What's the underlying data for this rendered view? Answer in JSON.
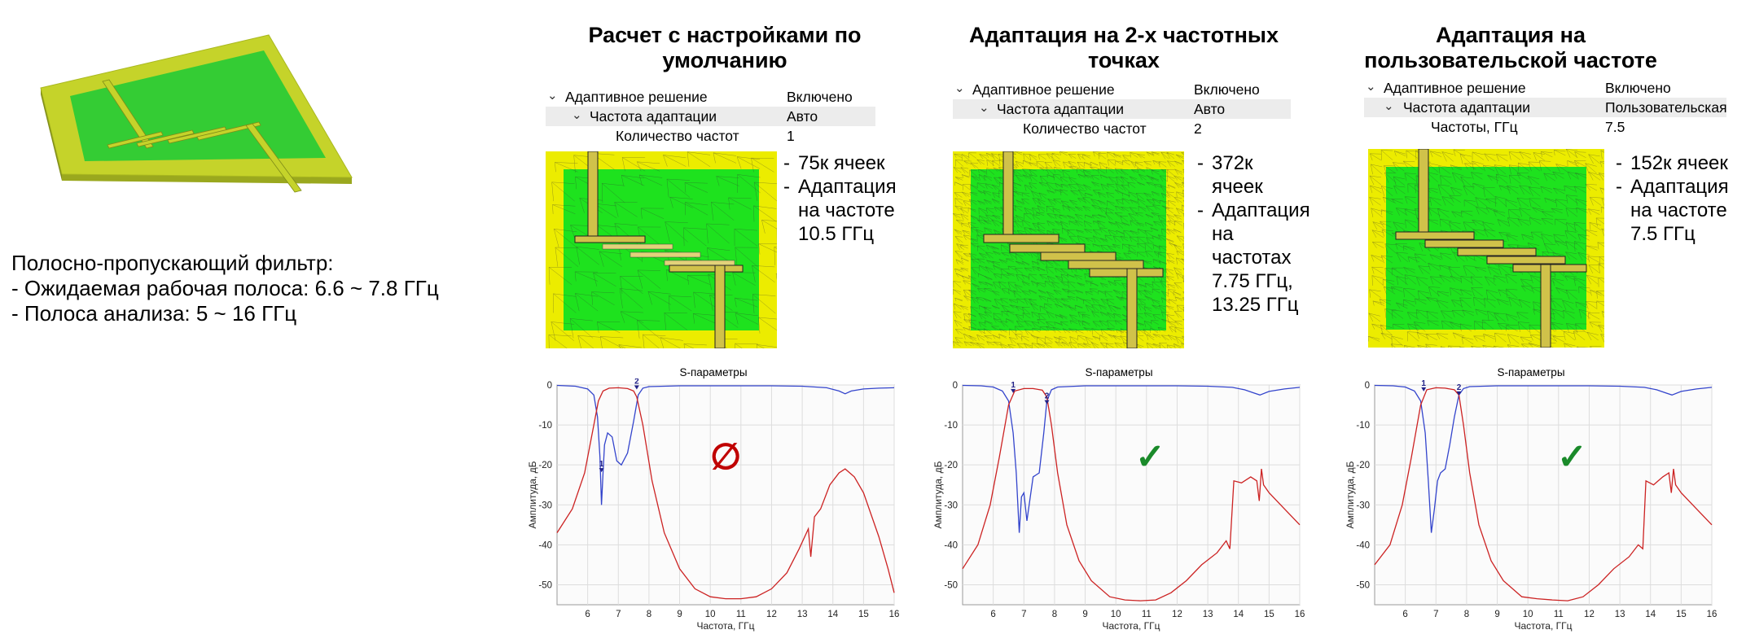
{
  "intro": {
    "heading": "Полосно-пропускающий фильтр:",
    "lines": [
      "Ожидаемая рабочая полоса: 6.6 ~ 7.8 ГГц",
      "Полоса анализа: 5 ~ 16 ГГц"
    ]
  },
  "columns": [
    {
      "title": "Расчет с настройками по умолчанию",
      "props": [
        {
          "label": "Адаптивное решение",
          "value": "Включено"
        },
        {
          "label": "Частота адаптации",
          "value": "Авто"
        },
        {
          "label": "Количество частот",
          "value": "1"
        }
      ],
      "bullets": [
        "75к ячеек",
        "Адаптация на частоте 10.5 ГГц"
      ],
      "status_icon": "prohibited-icon",
      "status_glyph": "∅",
      "status_color": "#c00000"
    },
    {
      "title": "Адаптация на 2-х частотных точках",
      "props": [
        {
          "label": "Адаптивное решение",
          "value": "Включено"
        },
        {
          "label": "Частота адаптации",
          "value": "Авто"
        },
        {
          "label": "Количество частот",
          "value": "2"
        }
      ],
      "bullets": [
        "372к ячеек",
        "Адаптация на частотах 7.75 ГГц, 13.25 ГГц"
      ],
      "status_icon": "checkmark-icon",
      "status_glyph": "✓",
      "status_color": "#1a8a2a"
    },
    {
      "title": "Адаптация на пользовательской частоте",
      "props": [
        {
          "label": "Адаптивное решение",
          "value": "Включено"
        },
        {
          "label": "Частота адаптации",
          "value": "Пользовательская"
        },
        {
          "label": "Частоты, ГГц",
          "value": "7.5"
        }
      ],
      "bullets": [
        "152к ячеек",
        "Адаптация на частоте 7.5 ГГц"
      ],
      "status_icon": "checkmark-icon",
      "status_glyph": "✓",
      "status_color": "#1a8a2a"
    }
  ],
  "chart_data": [
    {
      "type": "line",
      "title": "S-параметры",
      "xlabel": "Частота, ГГц",
      "ylabel": "Амплитуда, дБ",
      "xlim": [
        5,
        16
      ],
      "ylim": [
        -55,
        0
      ],
      "xticks": [
        6,
        7,
        8,
        9,
        10,
        11,
        12,
        13,
        14,
        15,
        16
      ],
      "yticks": [
        0,
        -10,
        -20,
        -30,
        -40,
        -50
      ],
      "markers": [
        {
          "label": "1",
          "x": 6.45,
          "y": -21
        },
        {
          "label": "2",
          "x": 7.6,
          "y": -0.3
        }
      ],
      "series": [
        {
          "color": "#3344cc",
          "x": [
            5,
            5.6,
            6.0,
            6.2,
            6.32,
            6.4,
            6.45,
            6.5,
            6.55,
            6.65,
            6.8,
            6.95,
            7.1,
            7.3,
            7.5,
            7.65,
            7.8,
            8.0,
            9,
            10,
            11,
            12,
            13,
            13.8,
            14.2,
            14.4,
            14.6,
            15,
            15.5,
            16
          ],
          "y": [
            -0.1,
            -0.3,
            -1,
            -2.5,
            -8,
            -18,
            -30,
            -22,
            -15,
            -12,
            -13,
            -19,
            -20,
            -17,
            -9,
            -2.5,
            -0.8,
            -0.4,
            -0.2,
            -0.2,
            -0.2,
            -0.2,
            -0.3,
            -0.7,
            -1.5,
            -2.2,
            -1.5,
            -1.0,
            -0.8,
            -0.7
          ]
        },
        {
          "color": "#cc2222",
          "x": [
            5,
            5.5,
            5.9,
            6.2,
            6.35,
            6.5,
            6.7,
            7.0,
            7.3,
            7.5,
            7.6,
            7.8,
            8.1,
            8.5,
            9,
            9.5,
            10,
            10.5,
            11,
            11.5,
            12,
            12.5,
            12.9,
            13.2,
            13.28,
            13.35,
            13.4,
            13.6,
            13.9,
            14.2,
            14.4,
            14.7,
            15,
            15.5,
            15.8,
            16
          ],
          "y": [
            -37,
            -31,
            -22,
            -10,
            -4,
            -1.5,
            -0.8,
            -0.7,
            -0.9,
            -1.5,
            -3,
            -10,
            -24,
            -37,
            -46,
            -51,
            -53,
            -53.5,
            -53.5,
            -53,
            -51,
            -47,
            -41,
            -36,
            -43,
            -37,
            -33,
            -31,
            -25,
            -22,
            -21,
            -23,
            -27,
            -38,
            -46,
            -52
          ]
        }
      ]
    },
    {
      "type": "line",
      "title": "S-параметры",
      "xlabel": "Частота, ГГц",
      "ylabel": "Амплитуда, дБ",
      "xlim": [
        5,
        16
      ],
      "ylim": [
        -55,
        0
      ],
      "xticks": [
        6,
        7,
        8,
        9,
        10,
        11,
        12,
        13,
        14,
        15,
        16
      ],
      "yticks": [
        0,
        -10,
        -20,
        -30,
        -40,
        -50
      ],
      "markers": [
        {
          "label": "1",
          "x": 6.65,
          "y": -1.2
        },
        {
          "label": "2",
          "x": 7.75,
          "y": -4
        }
      ],
      "series": [
        {
          "color": "#3344cc",
          "x": [
            5,
            5.6,
            6.0,
            6.3,
            6.5,
            6.65,
            6.75,
            6.85,
            6.92,
            7.0,
            7.1,
            7.3,
            7.5,
            7.65,
            7.75,
            7.9,
            8.1,
            9,
            10,
            11,
            12,
            13,
            13.8,
            14.2,
            14.5,
            14.7,
            15,
            15.5,
            16
          ],
          "y": [
            -0.1,
            -0.2,
            -0.5,
            -1.5,
            -4,
            -12,
            -22,
            -37,
            -28,
            -27,
            -34,
            -23,
            -22,
            -12,
            -4,
            -1.2,
            -0.5,
            -0.2,
            -0.2,
            -0.2,
            -0.2,
            -0.3,
            -0.6,
            -1.2,
            -2.0,
            -2.5,
            -1.6,
            -1.0,
            -0.6
          ]
        },
        {
          "color": "#cc2222",
          "x": [
            5,
            5.5,
            5.9,
            6.2,
            6.5,
            6.7,
            7.0,
            7.3,
            7.6,
            7.75,
            7.9,
            8.1,
            8.4,
            8.8,
            9.2,
            9.8,
            10.3,
            10.8,
            11.3,
            11.8,
            12.3,
            12.8,
            13.3,
            13.6,
            13.72,
            13.85,
            14.1,
            14.4,
            14.6,
            14.68,
            14.75,
            14.82,
            15,
            15.5,
            16
          ],
          "y": [
            -46,
            -40,
            -30,
            -18,
            -5,
            -1.5,
            -0.9,
            -0.9,
            -1.3,
            -3,
            -10,
            -22,
            -35,
            -44,
            -49,
            -53,
            -53.8,
            -54,
            -53.8,
            -52,
            -49,
            -45,
            -42,
            -39,
            -41,
            -24,
            -24.5,
            -23,
            -24,
            -29,
            -21,
            -25,
            -27,
            -31,
            -35
          ]
        }
      ]
    },
    {
      "type": "line",
      "title": "S-параметры",
      "xlabel": "Частота, ГГц",
      "ylabel": "Амплитуда, дБ",
      "xlim": [
        5,
        16
      ],
      "ylim": [
        -55,
        0
      ],
      "xticks": [
        6,
        7,
        8,
        9,
        10,
        11,
        12,
        13,
        14,
        15,
        16
      ],
      "yticks": [
        0,
        -10,
        -20,
        -30,
        -40,
        -50
      ],
      "markers": [
        {
          "label": "1",
          "x": 6.6,
          "y": -0.8
        },
        {
          "label": "2",
          "x": 7.75,
          "y": -1.8
        }
      ],
      "series": [
        {
          "color": "#3344cc",
          "x": [
            5,
            5.6,
            6.0,
            6.3,
            6.5,
            6.65,
            6.75,
            6.85,
            6.95,
            7.05,
            7.15,
            7.3,
            7.45,
            7.6,
            7.75,
            7.9,
            8.1,
            9,
            10,
            11,
            12,
            13,
            13.8,
            14.2,
            14.5,
            14.7,
            15,
            15.5,
            16
          ],
          "y": [
            -0.1,
            -0.2,
            -0.5,
            -1.5,
            -4,
            -12,
            -24,
            -37,
            -31,
            -24,
            -22,
            -21,
            -15,
            -8,
            -2.5,
            -0.9,
            -0.4,
            -0.2,
            -0.2,
            -0.2,
            -0.2,
            -0.3,
            -0.6,
            -1.2,
            -2.0,
            -2.5,
            -1.6,
            -1.0,
            -0.6
          ]
        },
        {
          "color": "#cc2222",
          "x": [
            5,
            5.5,
            5.9,
            6.2,
            6.5,
            6.7,
            7.0,
            7.3,
            7.6,
            7.75,
            7.9,
            8.1,
            8.4,
            8.8,
            9.2,
            9.8,
            10.3,
            10.8,
            11.3,
            11.8,
            12.3,
            12.8,
            13.3,
            13.6,
            13.75,
            13.85,
            14.1,
            14.4,
            14.6,
            14.68,
            14.75,
            14.82,
            15,
            15.5,
            16
          ],
          "y": [
            -45,
            -40,
            -30,
            -18,
            -5,
            -1.2,
            -0.7,
            -0.8,
            -1.2,
            -2.5,
            -10,
            -22,
            -35,
            -44,
            -49,
            -53,
            -53.5,
            -53.8,
            -54,
            -53,
            -50,
            -46,
            -43,
            -40,
            -41,
            -24,
            -25,
            -23,
            -22,
            -27,
            -21,
            -25,
            -27,
            -31,
            -35
          ]
        }
      ]
    }
  ]
}
